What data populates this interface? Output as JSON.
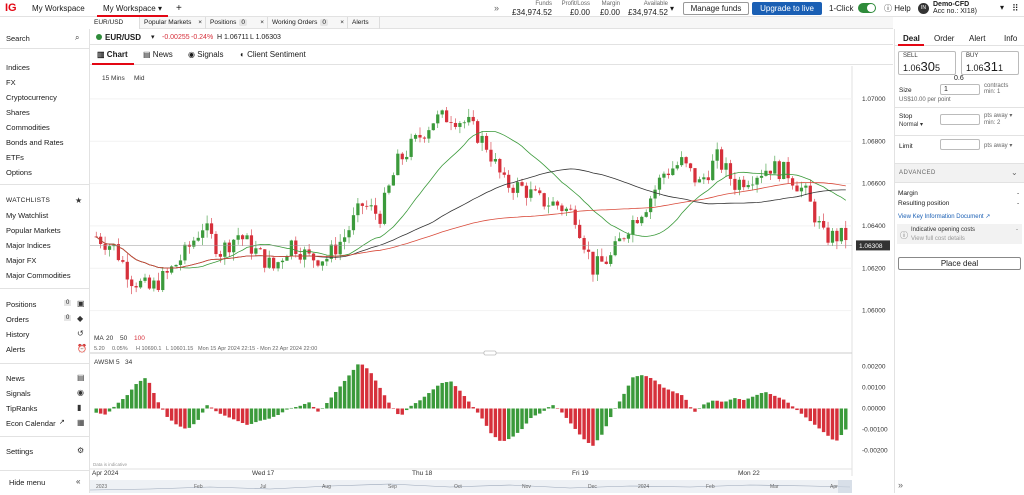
{
  "app": {
    "logo": "IG",
    "workspace_name": "My Workspace",
    "active_tab": "My Workspace",
    "add_label": "+",
    "collapse_icon": "double-chevron-right"
  },
  "header": {
    "stats": [
      {
        "label": "Funds",
        "value": "£34,974.52"
      },
      {
        "label": "Profit/Loss",
        "value": "£0.00"
      },
      {
        "label": "Margin",
        "value": "£0.00"
      },
      {
        "label": "Available",
        "value": "£34,974.52"
      }
    ],
    "manage_funds": "Manage funds",
    "upgrade": "Upgrade to live",
    "one_click": "1-Click",
    "help": "Help",
    "avatar": "IN",
    "account_name": "Demo-CFD",
    "account_no": "Acc no.: XI18)"
  },
  "workspace_tabs": [
    {
      "label": "EUR/USD",
      "count": ""
    },
    {
      "label": "Popular Markets",
      "count": ""
    },
    {
      "label": "Positions",
      "count": "0"
    },
    {
      "label": "Working Orders",
      "count": "0"
    },
    {
      "label": "Alerts",
      "count": ""
    }
  ],
  "sidebar": {
    "search": "Search",
    "markets": [
      "Indices",
      "FX",
      "Cryptocurrency",
      "Shares",
      "Commodities",
      "Bonds and Rates",
      "ETFs",
      "Options"
    ],
    "watchlists_head": "WATCHLISTS",
    "watchlists": [
      "My Watchlist",
      "Popular Markets",
      "Major Indices",
      "Major FX",
      "Major Commodities"
    ],
    "positions": {
      "label": "Positions",
      "count": "0"
    },
    "orders": {
      "label": "Orders",
      "count": "0"
    },
    "history": "History",
    "alerts": "Alerts",
    "tools": [
      "News",
      "Signals",
      "TipRanks",
      "Econ Calendar"
    ],
    "settings": "Settings",
    "hide_menu": "Hide menu"
  },
  "instrument": {
    "name": "EUR/USD",
    "change": "-0.00255",
    "change_pct": "-0.24%",
    "high": "H 1.06711",
    "low": "L 1.06303",
    "change_color": "#d6303b"
  },
  "subtabs": [
    "Chart",
    "News",
    "Signals",
    "Client Sentiment"
  ],
  "right_panel": {
    "tabs": [
      "Deal",
      "Order",
      "Alert",
      "Info"
    ],
    "sell_label": "SELL",
    "sell_price_a": "1.06",
    "sell_price_b": "30",
    "sell_price_c": "5",
    "buy_label": "BUY",
    "buy_price_a": "1.06",
    "buy_price_b": "31",
    "buy_price_c": "1",
    "spread": "0.6",
    "size_label": "Size",
    "size_value": "1",
    "size_unit": "contracts",
    "size_min": "min: 1",
    "size_note": "US$10.00 per point",
    "stop_label": "Stop",
    "stop_type": "Normal",
    "stop_unit": "pts away",
    "stop_min": "min: 2",
    "limit_label": "Limit",
    "limit_unit": "pts away",
    "advanced": "ADVANCED",
    "margin_label": "Margin",
    "margin_value": "-",
    "resulting_label": "Resulting position",
    "resulting_value": "-",
    "kid": "View Key Information Document",
    "indicative": "Indicative opening costs",
    "indicative_value": "-",
    "view_costs": "View full cost details",
    "place": "Place deal"
  },
  "chart_data": {
    "type": "candlestick",
    "timeframe": "15 Mins",
    "price_type": "Mid",
    "ma_label": "MA",
    "ma_periods": [
      "20",
      "50",
      "100"
    ],
    "ma_colors": [
      "#3b9a3b",
      "#333333",
      "#d94a3a"
    ],
    "info_line": {
      "pct": "5.20",
      "pct2": "0.05%",
      "high": "H 10690.1",
      "low": "L 10601.15",
      "range": "Mon 15 Apr 2024 22:15 - Mon 22 Apr 2024 22:00"
    },
    "y_ticks": [
      "1.07000",
      "1.06800",
      "1.06600",
      "1.06400",
      "1.06200",
      "1.06000"
    ],
    "ylim": [
      1.0588,
      1.0708
    ],
    "last_price": "1.06308",
    "x_labels": [
      "Apr 2024",
      "Wed 17",
      "Thu 18",
      "Fri 19",
      "Mon 22"
    ],
    "nav_labels": [
      "2023",
      "Feb",
      "Jul",
      "Aug",
      "Sep",
      "Oct",
      "Nov",
      "Dec",
      "2024",
      "Feb",
      "Mar",
      "Apr"
    ],
    "osc_label": "AWSM",
    "osc_periods": [
      "5",
      "34"
    ],
    "osc_ticks": [
      "0.00200",
      "0.00100",
      "0.00000",
      "-0.00100",
      "-0.00200"
    ],
    "osc_ylim": [
      -0.0025,
      0.0025
    ],
    "note": "Data is indicative",
    "close_path": [
      [
        0,
        1.0635
      ],
      [
        4,
        1.063
      ],
      [
        8,
        1.0615
      ],
      [
        12,
        1.061
      ],
      [
        16,
        1.0617
      ],
      [
        20,
        1.0627
      ],
      [
        24,
        1.064
      ],
      [
        28,
        1.0628
      ],
      [
        32,
        1.0636
      ],
      [
        36,
        1.0628
      ],
      [
        40,
        1.062
      ],
      [
        44,
        1.0632
      ],
      [
        48,
        1.0625
      ],
      [
        52,
        1.0625
      ],
      [
        56,
        1.0635
      ],
      [
        60,
        1.065
      ],
      [
        64,
        1.0645
      ],
      [
        68,
        1.067
      ],
      [
        72,
        1.068
      ],
      [
        76,
        1.069
      ],
      [
        80,
        1.0692
      ],
      [
        84,
        1.0688
      ],
      [
        88,
        1.0678
      ],
      [
        92,
        1.066
      ],
      [
        96,
        1.0658
      ],
      [
        100,
        1.0652
      ],
      [
        104,
        1.065
      ],
      [
        108,
        1.0645
      ],
      [
        112,
        1.062
      ],
      [
        116,
        1.0625
      ],
      [
        120,
        1.064
      ],
      [
        124,
        1.065
      ],
      [
        128,
        1.0665
      ],
      [
        132,
        1.067
      ],
      [
        136,
        1.066
      ],
      [
        140,
        1.0672
      ],
      [
        144,
        1.066
      ],
      [
        148,
        1.0664
      ],
      [
        152,
        1.0668
      ],
      [
        156,
        1.0665
      ],
      [
        160,
        1.0655
      ],
      [
        164,
        1.0635
      ]
    ],
    "osc_values": [
      -0.0002,
      -0.0003,
      0.0002,
      0.0006,
      0.0012,
      0.0015,
      0.0004,
      -0.0004,
      -0.0008,
      -0.001,
      -0.0006,
      0.0002,
      -0.0002,
      -0.0004,
      -0.0006,
      -0.0008,
      -0.0006,
      -0.0005,
      -0.0003,
      0.0,
      0.0001,
      0.0003,
      -0.0002,
      0.0004,
      0.001,
      0.0016,
      0.0022,
      0.0018,
      0.001,
      0.0002,
      -0.0004,
      0.0001,
      0.0004,
      0.0008,
      0.0012,
      0.0013,
      0.0008,
      0.0002,
      -0.0004,
      -0.0012,
      -0.0016,
      -0.0014,
      -0.001,
      -0.0004,
      -0.0002,
      0.0002,
      -0.0002,
      -0.0008,
      -0.0014,
      -0.0018,
      -0.0012,
      -0.0002,
      0.0006,
      0.0015,
      0.0016,
      0.0014,
      0.001,
      0.0008,
      0.0006,
      -0.0002,
      0.0002,
      0.0004,
      0.0003,
      0.0005,
      0.0004,
      0.0006,
      0.0008,
      0.0006,
      0.0004,
      0.0,
      -0.0004,
      -0.0008,
      -0.0012,
      -0.0016,
      -0.001
    ]
  }
}
